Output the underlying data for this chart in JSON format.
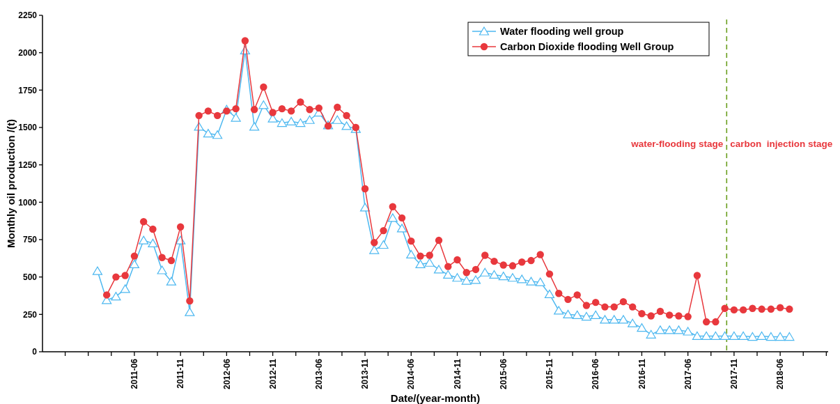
{
  "chart_data": {
    "type": "line",
    "xlabel": "Date/(year-month)",
    "ylabel": "Monthly oil production /(t)",
    "categories": [
      null,
      null,
      null,
      null,
      "2011-06",
      null,
      null,
      null,
      null,
      "2011-11",
      null,
      null,
      null,
      null,
      "2012-06",
      null,
      null,
      null,
      null,
      "2012-11",
      null,
      null,
      null,
      null,
      "2013-06",
      null,
      null,
      null,
      null,
      "2013-11",
      null,
      null,
      null,
      null,
      "2014-06",
      null,
      null,
      null,
      null,
      "2014-11",
      null,
      null,
      null,
      null,
      "2015-06",
      null,
      null,
      null,
      null,
      "2015-11",
      null,
      null,
      null,
      null,
      "2016-06",
      null,
      null,
      null,
      null,
      "2016-11",
      null,
      null,
      null,
      null,
      "2017-06",
      null,
      null,
      null,
      null,
      "2017-11",
      null,
      null,
      null,
      null,
      "2018-06",
      null
    ],
    "ylim": [
      0,
      2250
    ],
    "yticks": [
      0,
      250,
      500,
      750,
      1000,
      1250,
      1500,
      1750,
      2000,
      2250
    ],
    "grid": false,
    "legend": "top right",
    "line_style": "solid",
    "series": [
      {
        "name": "Water flooding well group",
        "color": "#4db8f0",
        "marker": "triangle",
        "values": [
          540,
          345,
          370,
          420,
          585,
          745,
          725,
          545,
          470,
          745,
          265,
          1505,
          1460,
          1450,
          1620,
          1565,
          2015,
          1505,
          1650,
          1560,
          1530,
          1540,
          1530,
          1550,
          1600,
          1515,
          1550,
          1510,
          1490,
          965,
          680,
          715,
          895,
          825,
          650,
          585,
          595,
          550,
          515,
          495,
          475,
          480,
          530,
          515,
          505,
          495,
          485,
          470,
          465,
          385,
          275,
          250,
          245,
          235,
          245,
          215,
          215,
          215,
          190,
          160,
          115,
          145,
          145,
          145,
          135,
          105,
          105,
          105,
          105,
          105,
          105,
          100,
          105,
          100,
          100,
          100
        ]
      },
      {
        "name": "Carbon Dioxide flooding Well Group",
        "color": "#e8383d",
        "marker": "circle",
        "values": [
          null,
          380,
          500,
          510,
          640,
          870,
          820,
          630,
          610,
          835,
          340,
          1580,
          1610,
          1580,
          1610,
          1625,
          2080,
          1620,
          1770,
          1600,
          1625,
          1610,
          1670,
          1620,
          1630,
          1510,
          1635,
          1580,
          1500,
          1090,
          730,
          810,
          970,
          895,
          740,
          640,
          645,
          745,
          570,
          615,
          530,
          550,
          645,
          605,
          580,
          575,
          600,
          610,
          650,
          520,
          390,
          350,
          380,
          310,
          330,
          300,
          300,
          335,
          300,
          255,
          240,
          270,
          245,
          240,
          235,
          510,
          200,
          200,
          290,
          280,
          280,
          290,
          285,
          285,
          295,
          285
        ]
      }
    ],
    "annotations": [
      "water-flooding stage",
      "carbon  injection stage"
    ]
  }
}
